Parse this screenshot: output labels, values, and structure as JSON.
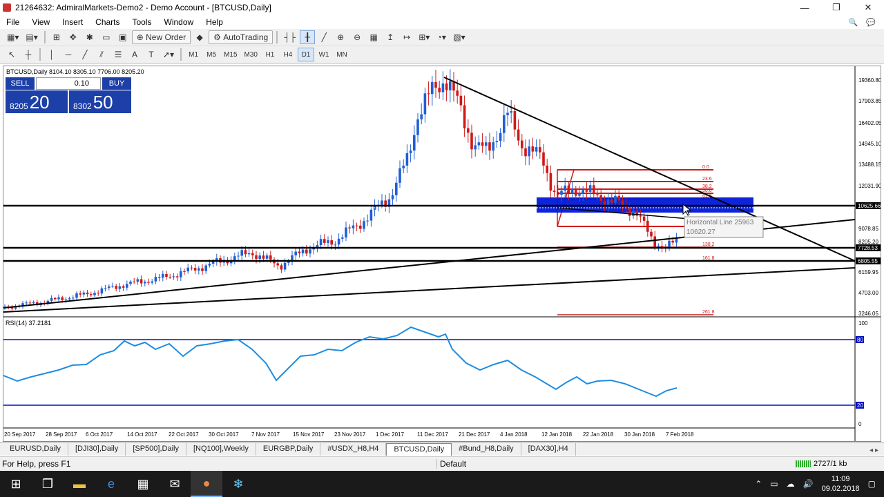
{
  "window": {
    "title": "21264632: AdmiralMarkets-Demo2 - Demo Account - [BTCUSD,Daily]",
    "min": "—",
    "max": "❐",
    "close": "✕"
  },
  "menu": [
    "File",
    "View",
    "Insert",
    "Charts",
    "Tools",
    "Window",
    "Help"
  ],
  "toolbar": {
    "new_order": "New Order",
    "autotrading": "AutoTrading",
    "timeframes": [
      "M1",
      "M5",
      "M15",
      "M30",
      "H1",
      "H4",
      "D1",
      "W1",
      "MN"
    ],
    "active_timeframe": "D1"
  },
  "chart": {
    "header": "BTCUSD,Daily  8104.10 8305.10 7706.00 8205.20",
    "price_scale": [
      "19360.80",
      "17903.85",
      "16402.05",
      "14945.10",
      "13488.15",
      "12031.90",
      "10625.66",
      "9078.85",
      "8205.20",
      "7728.53",
      "6805.55",
      "6159.95",
      "4703.00",
      "3246.05"
    ],
    "date_scale": [
      "20 Sep 2017",
      "28 Sep 2017",
      "6 Oct 2017",
      "14 Oct 2017",
      "22 Oct 2017",
      "30 Oct 2017",
      "7 Nov 2017",
      "15 Nov 2017",
      "23 Nov 2017",
      "1 Dec 2017",
      "11 Dec 2017",
      "21 Dec 2017",
      "4 Jan 2018",
      "12 Jan 2018",
      "22 Jan 2018",
      "30 Jan 2018",
      "7 Feb 2018"
    ],
    "fib_levels": [
      "0.0",
      "23.6",
      "38.2",
      "50.0",
      "61.8",
      "100.0",
      "138.2",
      "161.8",
      "261.8"
    ],
    "tooltip_name": "Horizontal Line 25963",
    "tooltip_value": "10620.27",
    "price_labels": {
      "h1": "10625.66",
      "h2": "7728.53",
      "h3": "6805.55",
      "bid": "8205.20"
    },
    "rsi_label": "RSI(14) 37.2181",
    "rsi_scale": [
      "100",
      "80",
      "20",
      "0"
    ],
    "colors": {
      "bull": "#1f5fd6",
      "bear": "#d01818",
      "fib": "#d01818",
      "zone": "#0018d8",
      "rsi": "#1e8ce0"
    }
  },
  "one_click": {
    "sell_label": "SELL",
    "buy_label": "BUY",
    "volume": "0.10",
    "sell_small": "8205",
    "sell_big": "20",
    "buy_small": "8302",
    "buy_big": "50"
  },
  "tabs": [
    "EURUSD,Daily",
    "[DJI30],Daily",
    "[SP500],Daily",
    "[NQ100],Weekly",
    "EURGBP,Daily",
    "#USDX_H8,H4",
    "BTCUSD,Daily",
    "#Bund_H8,Daily",
    "[DAX30],H4"
  ],
  "active_tab": "BTCUSD,Daily",
  "status": {
    "help": "For Help, press F1",
    "profile": "Default",
    "traffic": "2727/1 kb"
  },
  "taskbar": {
    "time": "11:09",
    "date": "09.02.2018"
  }
}
